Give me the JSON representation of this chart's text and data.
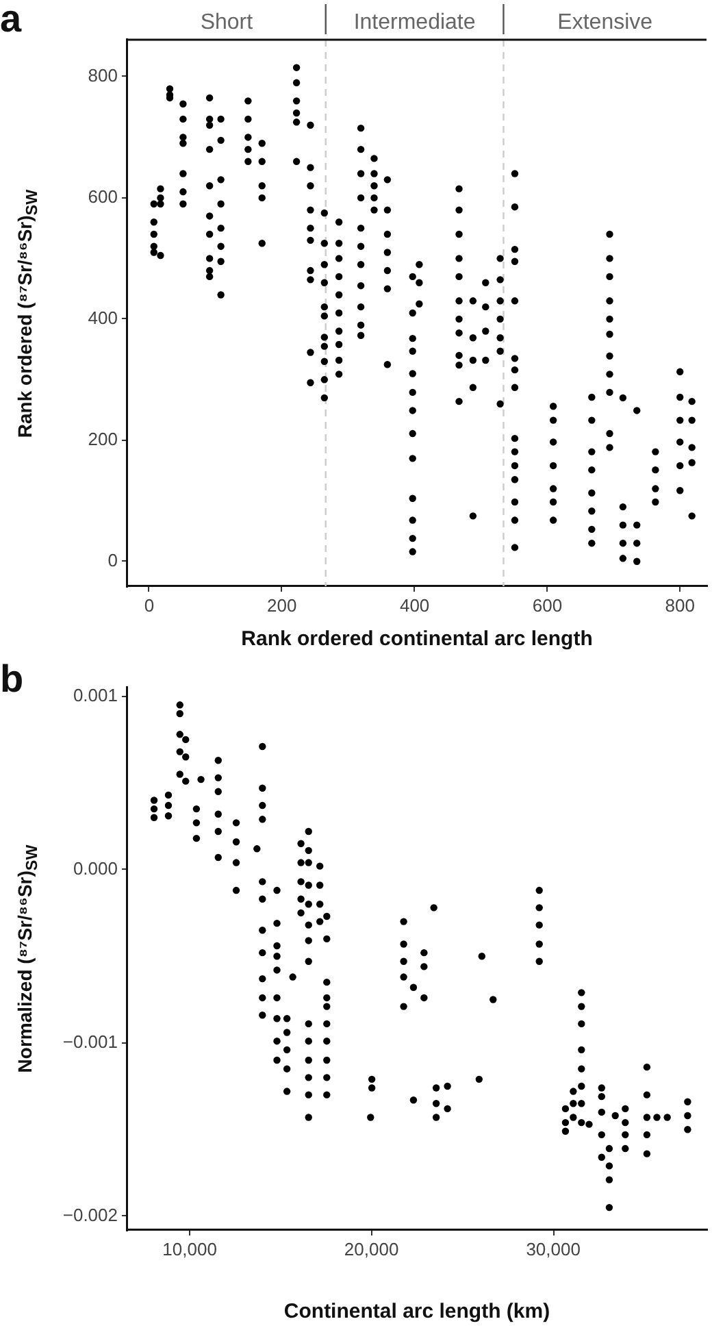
{
  "chart_data": [
    {
      "type": "scatter",
      "xlabel": "Rank ordered continental arc length",
      "ylabel": "Rank ordered (⁸⁷Sr/⁸⁶Sr)$_{SW}$",
      "xlim": [
        -33,
        840
      ],
      "ylim": [
        -41,
        861
      ],
      "xticks": [
        0,
        200,
        400,
        600,
        800
      ],
      "yticks": [
        0,
        200,
        400,
        600,
        800
      ],
      "marker": "circle",
      "legend": false,
      "ref_lines": [
        {
          "axis": "x",
          "value": 266,
          "color": "#cccccc",
          "line_style": "dashed"
        },
        {
          "axis": "x",
          "value": 534,
          "color": "#cccccc",
          "line_style": "dashed"
        }
      ],
      "annotations": [
        "a",
        "Short",
        "Intermediate",
        "Extensive"
      ],
      "series": [
        {
          "color": "#000000",
          "x": [
            7,
            7,
            7,
            7,
            7,
            17,
            17,
            17,
            17,
            31,
            31,
            31,
            51,
            51,
            51,
            51,
            51,
            51,
            51,
            91,
            91,
            91,
            91,
            91,
            91,
            91,
            91,
            91,
            91,
            108,
            108,
            108,
            108,
            108,
            108,
            108,
            108,
            149,
            149,
            149,
            149,
            149,
            170,
            170,
            170,
            170,
            170,
            222,
            222,
            222,
            222,
            222,
            222,
            243,
            243,
            243,
            243,
            243,
            243,
            243,
            243,
            243,
            243,
            264,
            264,
            264,
            264,
            264,
            264,
            264,
            264,
            264,
            264,
            264,
            286,
            286,
            286,
            286,
            286,
            286,
            286,
            286,
            286,
            286,
            319,
            319,
            319,
            319,
            319,
            319,
            319,
            319,
            319,
            319,
            319,
            339,
            339,
            339,
            339,
            339,
            359,
            359,
            359,
            359,
            359,
            359,
            359,
            397,
            397,
            397,
            397,
            397,
            397,
            397,
            397,
            397,
            397,
            397,
            397,
            397,
            407,
            407,
            407,
            467,
            467,
            467,
            467,
            467,
            467,
            467,
            467,
            467,
            467,
            467,
            488,
            488,
            488,
            488,
            488,
            507,
            507,
            507,
            507,
            529,
            529,
            529,
            529,
            529,
            529,
            529,
            551,
            551,
            551,
            551,
            551,
            551,
            551,
            551,
            551,
            551,
            551,
            551,
            551,
            551,
            551,
            609,
            609,
            609,
            609,
            609,
            609,
            609,
            667,
            667,
            667,
            667,
            667,
            667,
            667,
            667,
            694,
            694,
            694,
            694,
            694,
            694,
            694,
            694,
            694,
            694,
            694,
            714,
            714,
            714,
            714,
            714,
            735,
            735,
            735,
            735,
            763,
            763,
            763,
            763,
            800,
            800,
            800,
            800,
            800,
            800,
            818,
            818,
            818,
            818,
            818
          ],
          "values": [
            590,
            560,
            540,
            520,
            510,
            615,
            600,
            590,
            505,
            780,
            770,
            765,
            755,
            730,
            700,
            690,
            640,
            610,
            590,
            765,
            730,
            720,
            680,
            620,
            570,
            540,
            500,
            480,
            470,
            730,
            695,
            630,
            590,
            550,
            520,
            495,
            440,
            760,
            730,
            700,
            680,
            660,
            690,
            660,
            620,
            600,
            525,
            815,
            790,
            760,
            740,
            725,
            660,
            720,
            650,
            620,
            580,
            550,
            530,
            480,
            465,
            345,
            295,
            575,
            525,
            490,
            460,
            420,
            405,
            370,
            355,
            330,
            300,
            270,
            560,
            525,
            500,
            470,
            440,
            410,
            380,
            358,
            332,
            309,
            715,
            680,
            640,
            600,
            550,
            520,
            490,
            455,
            420,
            390,
            373,
            665,
            640,
            620,
            600,
            580,
            630,
            580,
            540,
            510,
            480,
            450,
            325,
            470,
            410,
            368,
            347,
            310,
            279,
            249,
            211,
            170,
            104,
            68,
            38,
            16,
            490,
            460,
            425,
            615,
            580,
            540,
            500,
            470,
            430,
            400,
            377,
            340,
            324,
            264,
            430,
            369,
            332,
            287,
            75,
            460,
            420,
            380,
            332,
            500,
            465,
            430,
            400,
            369,
            347,
            260,
            640,
            585,
            515,
            495,
            430,
            335,
            316,
            287,
            203,
            181,
            158,
            135,
            98,
            68,
            23,
            256,
            233,
            197,
            158,
            120,
            98,
            68,
            271,
            233,
            181,
            151,
            113,
            83,
            53,
            30,
            540,
            500,
            470,
            430,
            400,
            375,
            339,
            309,
            279,
            211,
            188,
            270,
            90,
            60,
            30,
            5,
            249,
            60,
            30,
            0,
            181,
            151,
            120,
            98,
            313,
            271,
            233,
            197,
            158,
            117,
            264,
            233,
            188,
            163,
            75
          ]
        }
      ]
    },
    {
      "type": "scatter",
      "xlabel": "Continental arc length (km)",
      "ylabel": "Normalized (⁸⁷Sr/⁸⁶Sr)$_{SW}$",
      "xlim": [
        6570,
        38430
      ],
      "ylim": [
        -0.00208,
        0.00105
      ],
      "xticks": [
        {
          "value": 10000,
          "label": "10,000"
        },
        {
          "value": 20000,
          "label": "20,000"
        },
        {
          "value": 30000,
          "label": "30,000"
        }
      ],
      "yticks": [
        {
          "value": -0.002,
          "label": "−0.002"
        },
        {
          "value": -0.001,
          "label": "−0.001"
        },
        {
          "value": 0,
          "label": "0.000"
        },
        {
          "value": 0.001,
          "label": "0.001"
        }
      ],
      "marker": "circle",
      "legend": false,
      "annotations": [
        "b"
      ],
      "series": [
        {
          "color": "#000000",
          "x": [
            8040,
            8040,
            8040,
            8830,
            8830,
            8830,
            9460,
            9460,
            9460,
            9460,
            9460,
            9780,
            9780,
            9780,
            10370,
            10370,
            10370,
            10620,
            11570,
            11570,
            11570,
            11570,
            11570,
            11570,
            12560,
            12560,
            12560,
            12560,
            14000,
            14000,
            14000,
            14000,
            14000,
            14000,
            14000,
            14000,
            14000,
            14000,
            14000,
            13700,
            14800,
            14800,
            14800,
            14800,
            14800,
            14800,
            14800,
            14800,
            14800,
            15350,
            15350,
            15350,
            15350,
            15350,
            15670,
            16120,
            16120,
            16120,
            16120,
            16120,
            16540,
            16540,
            16540,
            16540,
            16540,
            16540,
            16540,
            16540,
            16540,
            16540,
            16540,
            16540,
            16540,
            16540,
            17160,
            17160,
            17160,
            17160,
            17540,
            17540,
            17540,
            17540,
            17540,
            17540,
            17540,
            17540,
            17540,
            17540,
            20020,
            20020,
            19950,
            21770,
            21770,
            21770,
            21770,
            21770,
            22310,
            22310,
            22890,
            22890,
            22890,
            23430,
            23560,
            23560,
            23560,
            24180,
            24180,
            25920,
            26070,
            26690,
            29230,
            29230,
            29230,
            29230,
            29230,
            30670,
            30670,
            30670,
            31100,
            31100,
            31100,
            31550,
            31550,
            31550,
            31550,
            31550,
            31550,
            31550,
            31550,
            31970,
            32660,
            32660,
            32660,
            32660,
            32660,
            33080,
            33080,
            33080,
            33080,
            33410,
            33960,
            33960,
            33960,
            33960,
            35150,
            35150,
            35150,
            35150,
            35150,
            35700,
            36270,
            37390,
            37390,
            37390
          ],
          "values": [
            0.0004,
            0.00035,
            0.0003,
            0.00043,
            0.00037,
            0.00031,
            0.00095,
            0.0009,
            0.00078,
            0.00068,
            0.00055,
            0.00075,
            0.00065,
            0.00051,
            0.00035,
            0.00027,
            0.00018,
            0.00052,
            0.00063,
            0.00053,
            0.00045,
            0.00032,
            0.00022,
            7e-05,
            0.00027,
            0.00016,
            4e-05,
            -0.00012,
            0.00071,
            0.00047,
            0.00037,
            0.00029,
            -7e-05,
            -0.00017,
            -0.00035,
            -0.00048,
            -0.00063,
            -0.00074,
            -0.00084,
            0.00012,
            -0.00012,
            -0.00031,
            -0.00044,
            -0.0005,
            -0.00058,
            -0.00074,
            -0.00086,
            -0.00099,
            -0.0011,
            -0.00086,
            -0.00094,
            -0.00104,
            -0.00115,
            -0.00128,
            -0.00062,
            0.00015,
            4e-05,
            -7e-05,
            -0.00017,
            -0.00025,
            0.00022,
            0.00011,
            4e-05,
            -9e-05,
            -0.0002,
            -0.00032,
            -0.00041,
            -0.00053,
            -0.00089,
            -0.00099,
            -0.0011,
            -0.0012,
            -0.0013,
            -0.00143,
            2e-05,
            -9e-05,
            -0.0002,
            -0.0003,
            -0.00027,
            -0.0004,
            -0.00065,
            -0.00074,
            -0.00079,
            -0.00089,
            -0.00099,
            -0.0011,
            -0.0012,
            -0.0013,
            -0.00121,
            -0.00126,
            -0.00143,
            -0.0003,
            -0.00043,
            -0.00053,
            -0.00062,
            -0.00079,
            -0.00068,
            -0.00133,
            -0.00048,
            -0.00056,
            -0.00074,
            -0.00022,
            -0.00126,
            -0.00135,
            -0.00143,
            -0.00125,
            -0.00138,
            -0.00121,
            -0.0005,
            -0.00075,
            -0.00012,
            -0.00022,
            -0.00032,
            -0.00043,
            -0.00053,
            -0.00138,
            -0.00146,
            -0.00151,
            -0.00128,
            -0.00135,
            -0.00143,
            -0.00071,
            -0.00079,
            -0.00089,
            -0.00104,
            -0.00115,
            -0.00125,
            -0.00135,
            -0.00146,
            -0.00147,
            -0.00126,
            -0.00131,
            -0.0014,
            -0.00153,
            -0.00166,
            -0.00161,
            -0.00171,
            -0.00179,
            -0.00195,
            -0.00142,
            -0.00138,
            -0.00146,
            -0.00153,
            -0.00161,
            -0.00114,
            -0.0013,
            -0.00143,
            -0.00153,
            -0.00164,
            -0.00143,
            -0.00143,
            -0.00134,
            -0.00142,
            -0.0015
          ]
        }
      ]
    }
  ]
}
